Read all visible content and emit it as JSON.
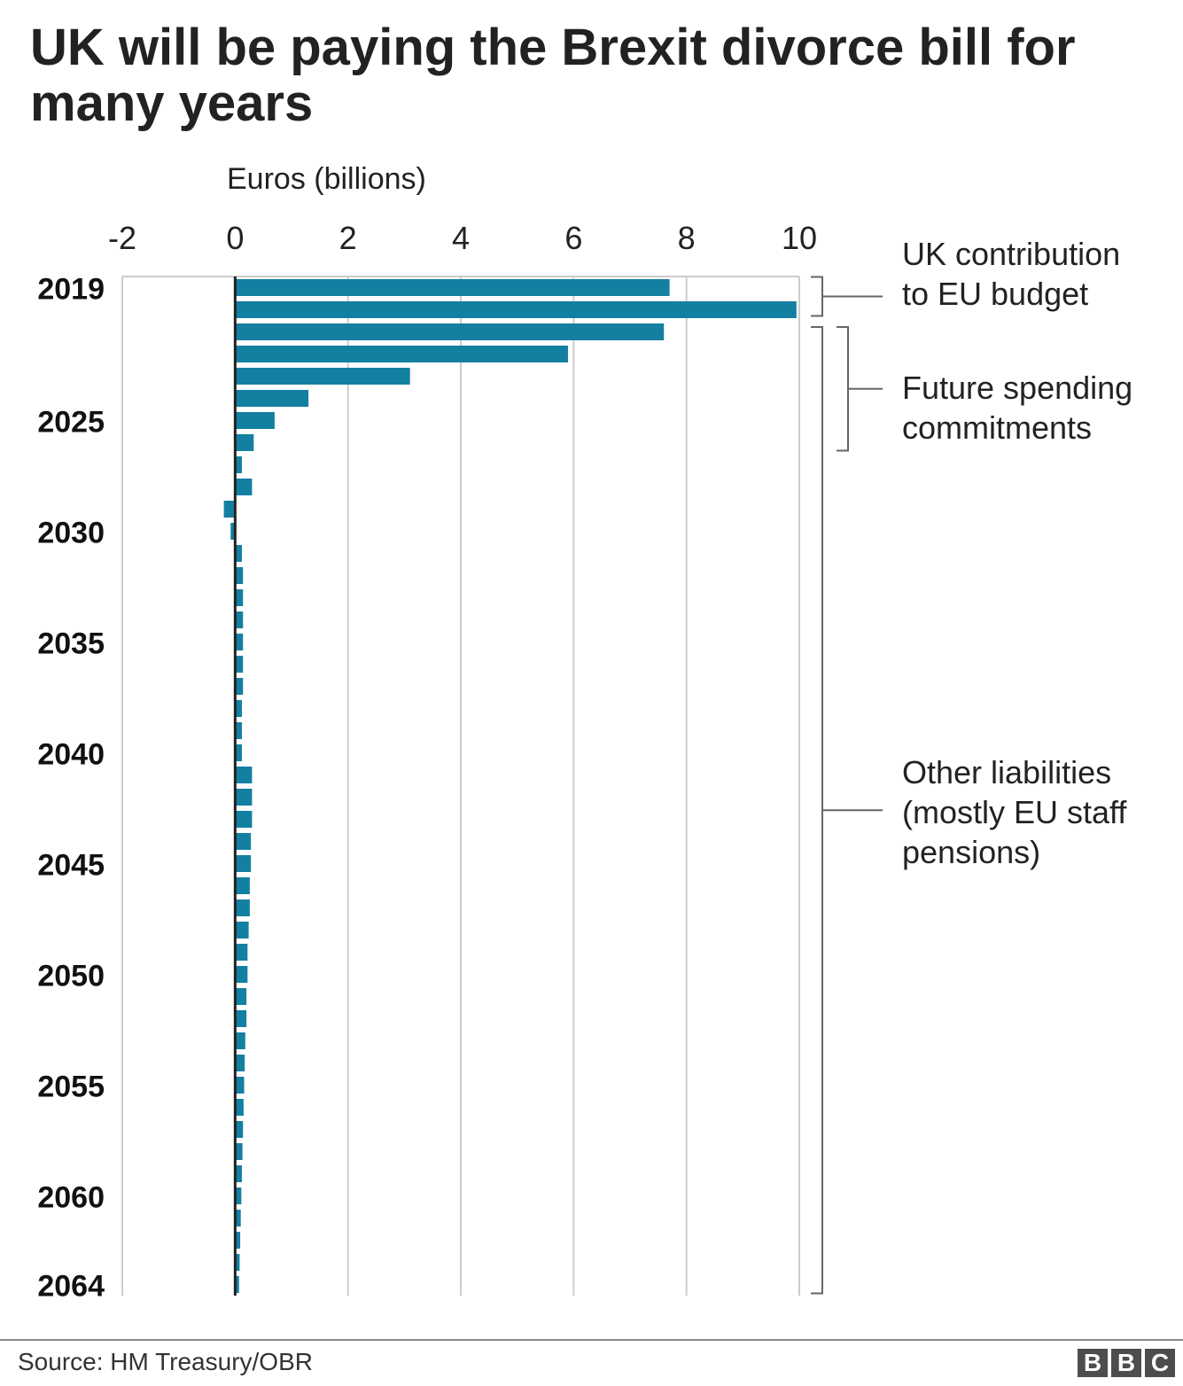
{
  "title": "UK will be paying the Brexit divorce bill for many years",
  "source": "Source: HM Treasury/OBR",
  "logo": [
    "B",
    "B",
    "C"
  ],
  "colors": {
    "bar": "#1380a1",
    "grid": "#cccccc",
    "axis": "#222222",
    "bracket": "#666666"
  },
  "chart_data": {
    "type": "bar",
    "orientation": "horizontal",
    "xlabel": "Euros (billions)",
    "xlim": [
      -2,
      10
    ],
    "xticks": [
      -2,
      0,
      2,
      4,
      6,
      8,
      10
    ],
    "ytick_labels": [
      "2019",
      "2025",
      "2030",
      "2035",
      "2040",
      "2045",
      "2050",
      "2055",
      "2060",
      "2064"
    ],
    "categories": [
      2019,
      2020,
      2021,
      2022,
      2023,
      2024,
      2025,
      2026,
      2027,
      2028,
      2029,
      2030,
      2031,
      2032,
      2033,
      2034,
      2035,
      2036,
      2037,
      2038,
      2039,
      2040,
      2041,
      2042,
      2043,
      2044,
      2045,
      2046,
      2047,
      2048,
      2049,
      2050,
      2051,
      2052,
      2053,
      2054,
      2055,
      2056,
      2057,
      2058,
      2059,
      2060,
      2061,
      2062,
      2063,
      2064
    ],
    "values": [
      7.7,
      9.95,
      7.6,
      5.9,
      3.1,
      1.3,
      0.7,
      0.33,
      0.12,
      0.3,
      -0.2,
      -0.08,
      0.12,
      0.14,
      0.14,
      0.14,
      0.14,
      0.14,
      0.14,
      0.12,
      0.12,
      0.12,
      0.3,
      0.3,
      0.3,
      0.28,
      0.28,
      0.26,
      0.26,
      0.24,
      0.22,
      0.22,
      0.2,
      0.2,
      0.18,
      0.17,
      0.16,
      0.15,
      0.14,
      0.13,
      0.12,
      0.11,
      0.1,
      0.09,
      0.08,
      0.07
    ],
    "annotations": [
      {
        "lines": [
          "UK contribution",
          "to EU budget"
        ],
        "from": 2019,
        "to": 2020
      },
      {
        "lines": [
          "Future spending",
          "commitments"
        ],
        "from": 2021,
        "to": 2026
      },
      {
        "lines": [
          "Other liabilities",
          "(mostly EU staff",
          "pensions)"
        ],
        "from": 2021,
        "to": 2064
      }
    ]
  }
}
